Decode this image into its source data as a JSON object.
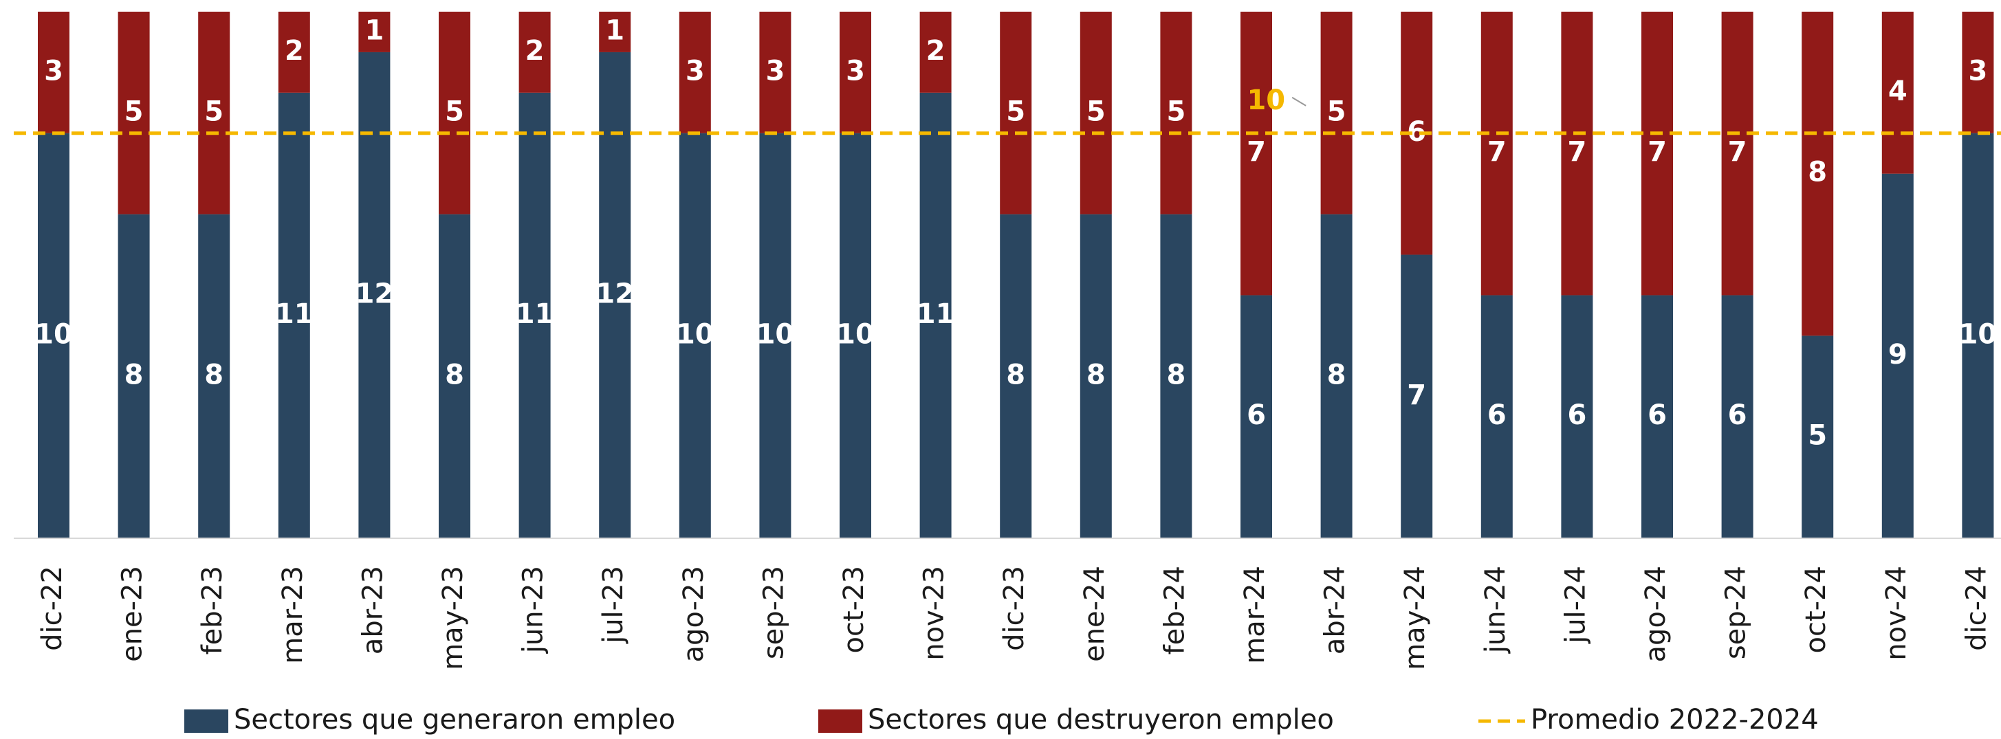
{
  "chart_data": {
    "type": "stacked-bar",
    "categories": [
      "dic-22",
      "ene-23",
      "feb-23",
      "mar-23",
      "abr-23",
      "may-23",
      "jun-23",
      "jul-23",
      "ago-23",
      "sep-23",
      "oct-23",
      "nov-23",
      "dic-23",
      "ene-24",
      "feb-24",
      "mar-24",
      "abr-24",
      "may-24",
      "jun-24",
      "jul-24",
      "ago-24",
      "sep-24",
      "oct-24",
      "nov-24",
      "dic-24"
    ],
    "series": [
      {
        "name": "Sectores que generaron empleo",
        "color": "#2a4660",
        "values": [
          10,
          8,
          8,
          11,
          12,
          8,
          11,
          12,
          10,
          10,
          10,
          11,
          8,
          8,
          8,
          6,
          8,
          7,
          6,
          6,
          6,
          6,
          5,
          9,
          10
        ]
      },
      {
        "name": "Sectores que destruyeron empleo",
        "color": "#911a18",
        "values": [
          3,
          5,
          5,
          2,
          1,
          5,
          2,
          1,
          3,
          3,
          3,
          2,
          5,
          5,
          5,
          7,
          5,
          6,
          7,
          7,
          7,
          7,
          8,
          4,
          3
        ]
      }
    ],
    "average": {
      "name": "Promedio 2022-2024",
      "value": 10,
      "color": "#f5b800"
    },
    "ylim": [
      0,
      13
    ]
  }
}
